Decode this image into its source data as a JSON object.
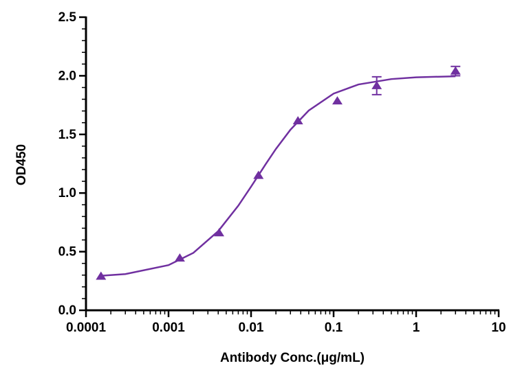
{
  "chart_data": {
    "type": "scatter",
    "x_label": "Antibody Conc.(μg/mL)",
    "y_label": "OD450",
    "xscale": "log",
    "xlim": [
      0.0001,
      10
    ],
    "xticks": [
      0.0001,
      0.001,
      0.01,
      0.1,
      1,
      10
    ],
    "ylim": [
      0,
      2.5
    ],
    "yticks": [
      {
        "value": 0,
        "label": "0.0"
      },
      {
        "value": 0.5,
        "label": "0.5"
      },
      {
        "value": 1,
        "label": "1.0"
      },
      {
        "value": 1.5,
        "label": "1.5"
      },
      {
        "value": 2,
        "label": "2.0"
      },
      {
        "value": 2.5,
        "label": "2.5"
      }
    ],
    "grid": false,
    "series": [
      {
        "type": "scatter",
        "color": "#7030a0",
        "x": [
          0.000152,
          0.00137,
          0.0041,
          0.0123,
          0.037,
          0.111,
          0.333,
          3
        ],
        "values": [
          0.29,
          0.445,
          0.66,
          1.15,
          1.615,
          1.785,
          1.915,
          2.04
        ],
        "errors": [
          null,
          null,
          null,
          null,
          null,
          null,
          0.076,
          0.04
        ]
      },
      {
        "type": "line",
        "color": "#7030a0",
        "x": [
          0.00015,
          0.0003,
          0.001,
          0.002,
          0.004,
          0.007,
          0.01,
          0.015,
          0.02,
          0.03,
          0.05,
          0.1,
          0.2,
          0.5,
          1,
          3
        ],
        "values": [
          0.294,
          0.309,
          0.385,
          0.49,
          0.675,
          0.892,
          1.054,
          1.245,
          1.376,
          1.54,
          1.704,
          1.848,
          1.926,
          1.972,
          1.987,
          1.996
        ]
      }
    ]
  }
}
